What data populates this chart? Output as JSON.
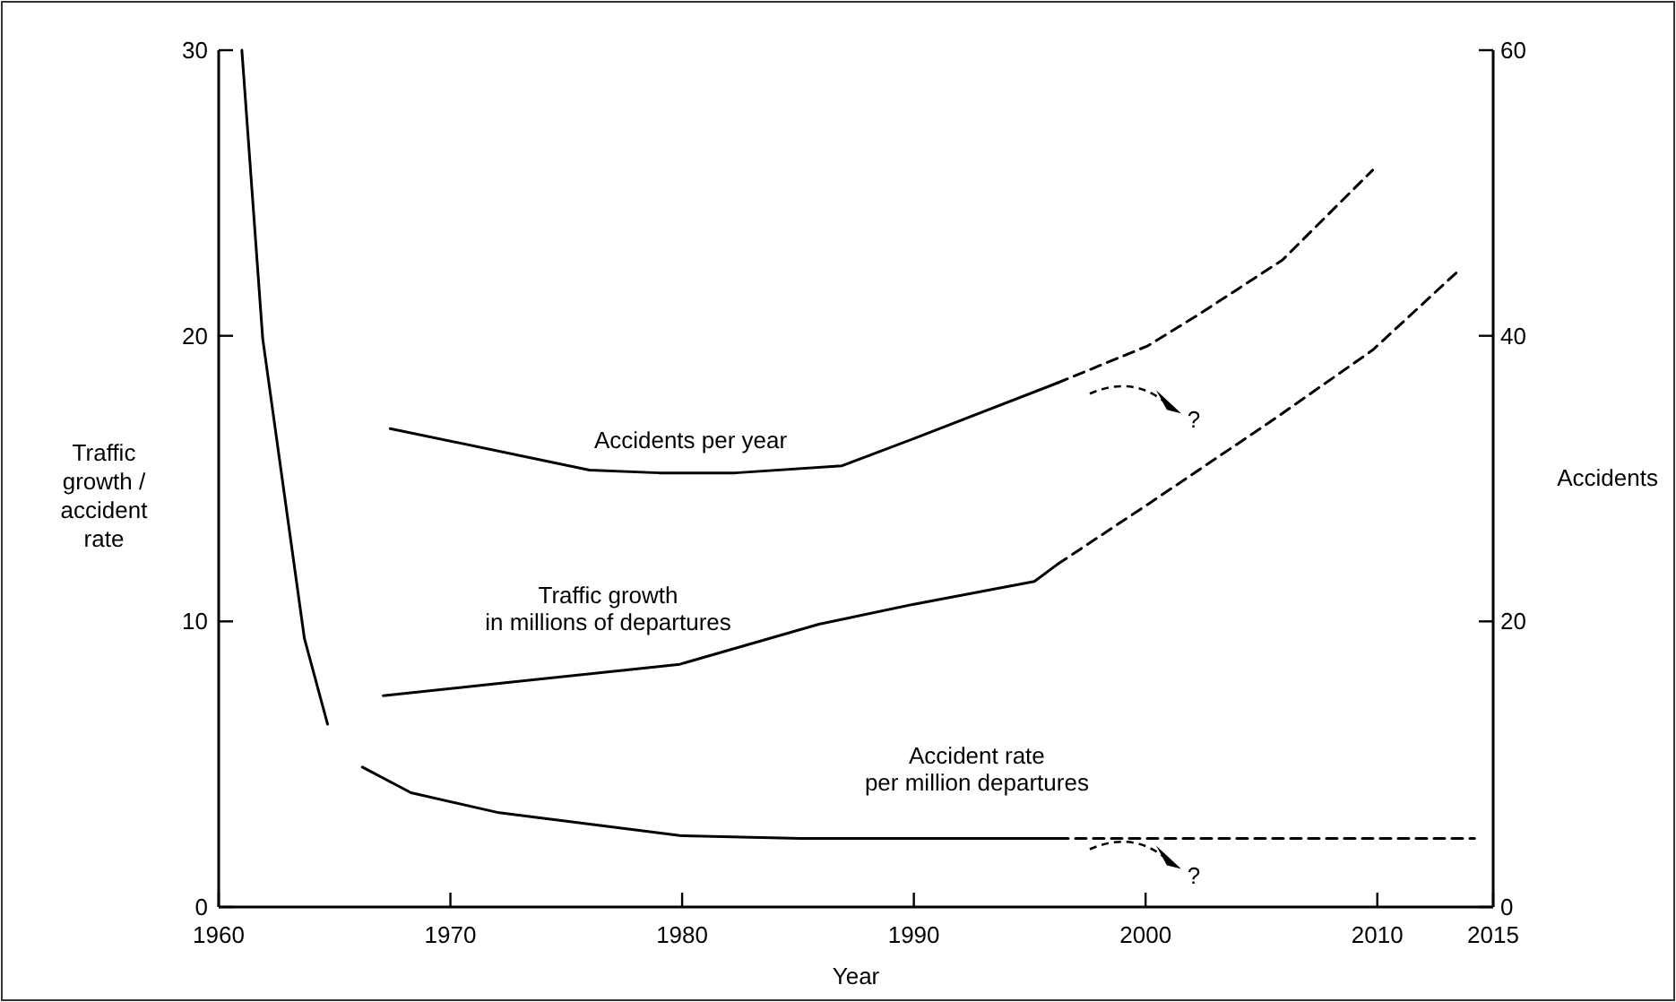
{
  "chart_data": {
    "type": "line",
    "xlabel": "Year",
    "ylabel": "Traffic\ngrowth /\naccident\nrate",
    "y2label": "Accidents",
    "xlim": [
      1960,
      2015
    ],
    "xticks": [
      1960,
      1970,
      1980,
      1990,
      2000,
      2010,
      2015
    ],
    "ylim": [
      0,
      30
    ],
    "yticks": [
      0,
      10,
      20,
      30
    ],
    "y2lim": [
      0,
      60
    ],
    "y2ticks": [
      0,
      20,
      40,
      60
    ],
    "grid": false,
    "series": [
      {
        "name": "Accident rate\nper million departures",
        "color": "#000000",
        "line_style": "solid",
        "x": [
          1961,
          1961.9,
          1963.7,
          1964.7,
          1965.5,
          1966.2,
          1968.3,
          1972.1,
          1979.9,
          1985.1,
          1996.2
        ],
        "values": [
          30,
          19.9,
          9.4,
          6.4,
          null,
          4.9,
          4.0,
          3.3,
          2.5,
          2.4,
          2.4
        ]
      },
      {
        "color": "#000000",
        "line_style": "dashed",
        "x": [
          1996.2,
          2014.2
        ],
        "values": [
          2.4,
          2.4
        ]
      },
      {
        "name": "Traffic growth\nin millions of departures",
        "color": "#000000",
        "line_style": "solid",
        "x": [
          1967.1,
          1979.9,
          1985.9,
          1990,
          1995.2,
          1996.2
        ],
        "values": [
          7.4,
          8.5,
          9.9,
          10.6,
          11.4,
          12.0
        ]
      },
      {
        "color": "#000000",
        "line_style": "dashed",
        "x": [
          1996.2,
          2000.1,
          2005.4,
          2009.8,
          2013.4
        ],
        "values": [
          12.0,
          14.1,
          17.0,
          19.5,
          22.2
        ]
      },
      {
        "name": "Accidents per year",
        "color": "#000000",
        "line_style": "solid",
        "axis": "y2",
        "x": [
          1967.4,
          1976,
          1979,
          1982.3,
          1986.9,
          1990,
          1996.2
        ],
        "values": [
          33.5,
          30.6,
          30.4,
          30.4,
          30.9,
          32.8,
          36.7
        ]
      },
      {
        "color": "#000000",
        "line_style": "dashed",
        "axis": "y2",
        "x": [
          1996.2,
          2000.1,
          2002.3,
          2005.9,
          2009.8
        ],
        "values": [
          36.7,
          39.3,
          41.5,
          45.3,
          51.6
        ]
      }
    ],
    "annotations": [
      "?",
      "?"
    ]
  }
}
